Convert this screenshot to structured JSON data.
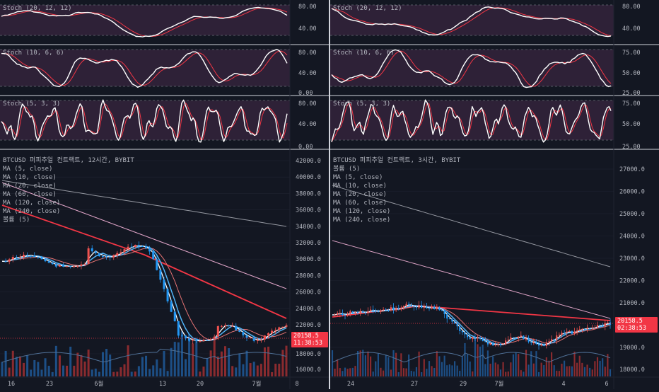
{
  "colors": {
    "bg": "#131722",
    "grid": "#1f2330",
    "band": "#3a2740",
    "band_line": "#6b6f7a",
    "stoch_k": "#ffffff",
    "stoch_d": "#f23645",
    "up": "#ef5350",
    "down": "#2196f3",
    "vol_up": "#8a2b2f",
    "vol_down": "#1d4f86",
    "ma5": "#ffffff",
    "ma10": "#4fb3f6",
    "ma20": "#e57373",
    "ma60": "#f23645",
    "ma120": "#e1a6c9",
    "ma240": "#9598a1",
    "separator": "#d1d4dc",
    "price_tag": "#f23645"
  },
  "left": {
    "stoch_panels": [
      {
        "label": "Stoch (20, 12, 12)",
        "ticks": [
          "80.00",
          "40.00"
        ]
      },
      {
        "label": "Stoch (10, 6, 6)",
        "ticks": [
          "80.00",
          "40.00",
          "0.00"
        ]
      },
      {
        "label": "Stoch (5, 3, 3)",
        "ticks": [
          "80.00",
          "40.00",
          "0.00"
        ]
      }
    ],
    "main": {
      "title": "BTCUSD 퍼피추얼 컨트랙트, 12시간, BYBIT",
      "legend": [
        "MA (5, close)",
        "MA (10, close)",
        "MA (20, close)",
        "MA (60, close)",
        "MA (120, close)",
        "MA (240, close)",
        "볼륨 (5)"
      ],
      "y_ticks": [
        "42000.0",
        "40000.0",
        "38000.0",
        "36000.0",
        "34000.0",
        "32000.0",
        "30000.0",
        "28000.0",
        "26000.0",
        "24000.0",
        "22000.0",
        "18000.0",
        "16000.0"
      ],
      "price": "20158.5",
      "countdown": "11:38:53",
      "x_ticks": [
        "16",
        "23",
        "6월",
        "13",
        "20",
        "7월",
        "8"
      ]
    }
  },
  "right": {
    "stoch_panels": [
      {
        "label": "Stoch (20, 12, 12)",
        "ticks": [
          "80.00",
          "40.00"
        ]
      },
      {
        "label": "Stoch (10, 6, 6)",
        "ticks": [
          "75.00",
          "50.00",
          "25.00"
        ]
      },
      {
        "label": "Stoch (5, 3, 3)",
        "ticks": [
          "75.00",
          "50.00",
          "25.00"
        ]
      }
    ],
    "main": {
      "title": "BTCUSD 퍼피추얼 컨트랙트, 3시간, BYBIT",
      "legend": [
        "볼륨 (5)",
        "MA (5, close)",
        "MA (10, close)",
        "MA (20, close)",
        "MA (60, close)",
        "MA (120, close)",
        "MA (240, close)"
      ],
      "y_ticks": [
        "27000.0",
        "26000.0",
        "25000.0",
        "24000.0",
        "23000.0",
        "22000.0",
        "21000.0",
        "19000.0",
        "18000.0"
      ],
      "price": "20158.5",
      "countdown": "02:38:53",
      "x_ticks": [
        "24",
        "27",
        "29",
        "7월",
        "4",
        "6"
      ]
    }
  }
}
